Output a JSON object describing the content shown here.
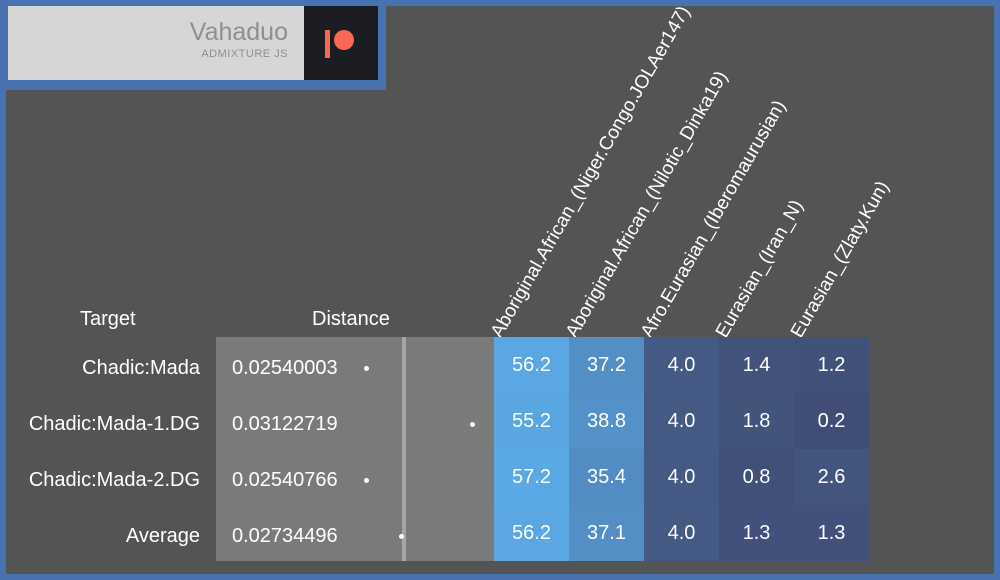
{
  "brand": {
    "title": "Vahaduo",
    "subtitle": "ADMIXTURE JS",
    "patreon_icon": "patreon-icon",
    "patreon_color": "#f96854"
  },
  "headers": {
    "target": "Target",
    "distance": "Distance"
  },
  "populations": [
    "Aboriginal.African_(Niger.Congo.JOLAer147)",
    "Aboriginal.African_(Nilotic_Dinka19)",
    "Afro.Eurasian_(Iberomaurusian)",
    "Eurasian_(Iran_N)",
    "Eurasian_(Zlaty.Kun)"
  ],
  "rows": [
    {
      "target": "Chadic:Mada",
      "distance": "0.02540003",
      "dist_value": 0.02540003,
      "values": [
        "56.2",
        "37.2",
        "4.0",
        "1.4",
        "1.2"
      ]
    },
    {
      "target": "Chadic:Mada-1.DG",
      "distance": "0.03122719",
      "dist_value": 0.03122719,
      "values": [
        "55.2",
        "38.8",
        "4.0",
        "1.8",
        "0.2"
      ]
    },
    {
      "target": "Chadic:Mada-2.DG",
      "distance": "0.02540766",
      "dist_value": 0.02540766,
      "values": [
        "57.2",
        "35.4",
        "4.0",
        "0.8",
        "2.6"
      ]
    },
    {
      "target": "Average",
      "distance": "0.02734496",
      "dist_value": 0.02734496,
      "values": [
        "56.2",
        "37.1",
        "4.0",
        "1.3",
        "1.3"
      ]
    }
  ],
  "colors": {
    "background": "#545454",
    "border": "#4872b0",
    "distance_panel": "#7a7a7a",
    "cell_low": "#404c74",
    "cell_high": "#5aa8e4"
  }
}
